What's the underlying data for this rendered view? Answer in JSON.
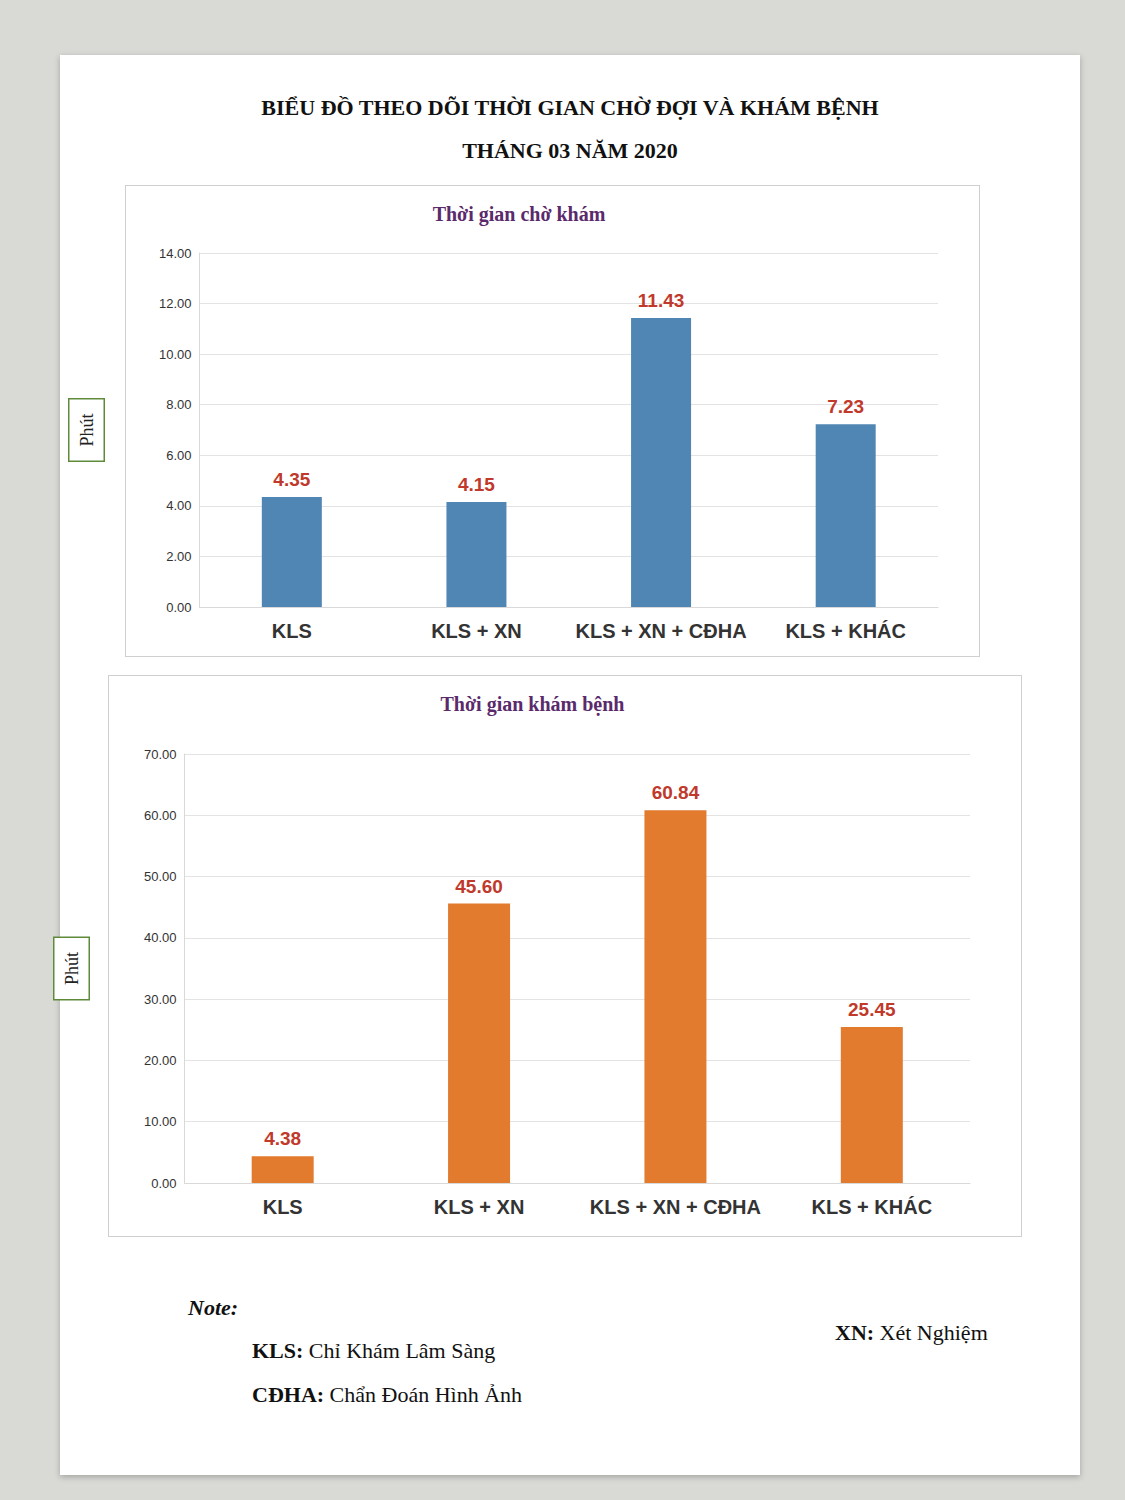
{
  "title_lines": [
    "BIỂU ĐỒ THEO DÕI THỜI GIAN CHỜ ĐỢI VÀ KHÁM BỆNH",
    "THÁNG 03 NĂM 2020"
  ],
  "chart_data": [
    {
      "type": "bar",
      "title": "Thời gian chờ khám",
      "ylabel": "Phút",
      "categories": [
        "KLS",
        "KLS + XN",
        "KLS + XN + CĐHA",
        "KLS + KHÁC"
      ],
      "values": [
        4.35,
        4.15,
        11.43,
        7.23
      ],
      "color": "#4f86b4",
      "ylim": [
        0,
        14
      ],
      "yticks": [
        {
          "value": 0,
          "label": "0.00"
        },
        {
          "value": 2,
          "label": "2.00"
        },
        {
          "value": 4,
          "label": "4.00"
        },
        {
          "value": 6,
          "label": "6.00"
        },
        {
          "value": 8,
          "label": "8.00"
        },
        {
          "value": 10,
          "label": "10.00"
        },
        {
          "value": 12,
          "label": "12.00"
        },
        {
          "value": 14,
          "label": "14.00"
        }
      ],
      "grid": true,
      "data_labels": true
    },
    {
      "type": "bar",
      "title": "Thời gian khám bệnh",
      "ylabel": "Phút",
      "categories": [
        "KLS",
        "KLS + XN",
        "KLS + XN + CĐHA",
        "KLS + KHÁC"
      ],
      "values": [
        4.38,
        45.6,
        60.84,
        25.45
      ],
      "value_labels": [
        "4.38",
        "45.60",
        "60.84",
        "25.45"
      ],
      "color": "#e27b2e",
      "ylim": [
        0,
        70
      ],
      "yticks": [
        {
          "value": 0,
          "label": "0.00"
        },
        {
          "value": 10,
          "label": "10.00"
        },
        {
          "value": 20,
          "label": "20.00"
        },
        {
          "value": 30,
          "label": "30.00"
        },
        {
          "value": 40,
          "label": "40.00"
        },
        {
          "value": 50,
          "label": "50.00"
        },
        {
          "value": 60,
          "label": "60.00"
        },
        {
          "value": 70,
          "label": "70.00"
        }
      ],
      "grid": true,
      "data_labels": true
    }
  ],
  "notes": {
    "heading": "Note:",
    "items": [
      {
        "term": "KLS:",
        "text": "Chỉ Khám Lâm Sàng"
      },
      {
        "term": "CĐHA:",
        "text": "Chẩn Đoán Hình Ảnh"
      },
      {
        "term": "XN:",
        "text": "Xét Nghiệm"
      }
    ]
  }
}
